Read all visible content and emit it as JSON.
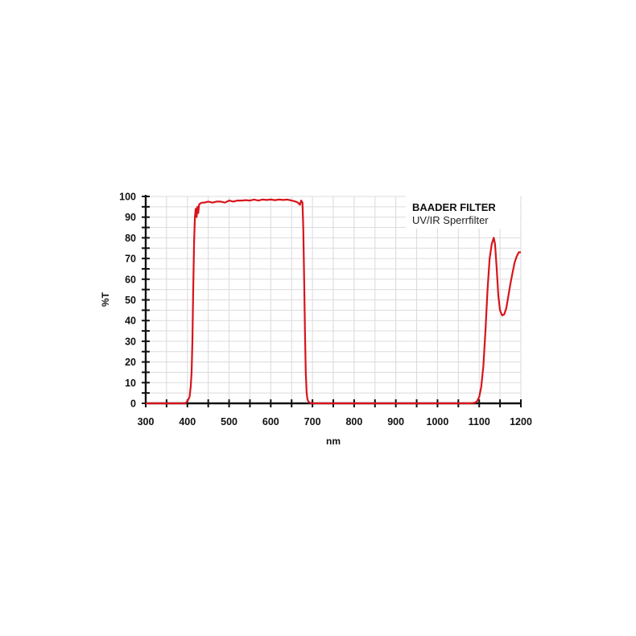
{
  "chart_data": {
    "type": "line",
    "title": "",
    "legend": {
      "title": "BAADER FILTER",
      "subtitle": "UV/IR Sperrfilter",
      "position": "top-right"
    },
    "xlabel": "nm",
    "ylabel": "%T",
    "xlim": [
      300,
      1200
    ],
    "ylim": [
      0,
      100
    ],
    "x_ticks": [
      300,
      400,
      500,
      600,
      700,
      800,
      900,
      1000,
      1100,
      1200
    ],
    "x_minor_step": 50,
    "y_ticks": [
      0,
      10,
      20,
      30,
      40,
      50,
      60,
      70,
      80,
      90,
      100
    ],
    "y_minor_step": 5,
    "grid": true,
    "series": [
      {
        "name": "UV/IR Sperrfilter",
        "color": "#d8141c",
        "x": [
          300,
          395,
          400,
          405,
          408,
          410,
          412,
          414,
          416,
          418,
          420,
          422,
          424,
          426,
          428,
          430,
          435,
          440,
          450,
          460,
          470,
          480,
          490,
          500,
          510,
          520,
          530,
          540,
          550,
          560,
          570,
          580,
          590,
          600,
          610,
          620,
          630,
          640,
          650,
          660,
          665,
          670,
          673,
          676,
          678,
          680,
          682,
          684,
          686,
          688,
          690,
          692,
          695,
          700,
          710,
          800,
          900,
          1000,
          1080,
          1090,
          1095,
          1100,
          1105,
          1110,
          1115,
          1120,
          1125,
          1130,
          1135,
          1138,
          1142,
          1146,
          1150,
          1155,
          1160,
          1165,
          1170,
          1175,
          1180,
          1185,
          1190,
          1195,
          1200
        ],
        "values": [
          0,
          0,
          1,
          3,
          8,
          15,
          30,
          55,
          78,
          90,
          94,
          90,
          95,
          92,
          96,
          96.5,
          97,
          97,
          97.5,
          97,
          97.5,
          97.5,
          97,
          98,
          97.5,
          98,
          98,
          98.2,
          98,
          98.5,
          98,
          98.5,
          98.3,
          98.5,
          98.2,
          98.5,
          98.3,
          98.5,
          98,
          97.5,
          97,
          96,
          98,
          97,
          85,
          60,
          35,
          15,
          5,
          2,
          1,
          0.5,
          0.2,
          0,
          0,
          0,
          0,
          0,
          0,
          0.3,
          1,
          3,
          8,
          18,
          35,
          55,
          70,
          77,
          80,
          77,
          65,
          52,
          45,
          42.5,
          43,
          46,
          52,
          58,
          63,
          68,
          71,
          73,
          73
        ]
      }
    ]
  }
}
